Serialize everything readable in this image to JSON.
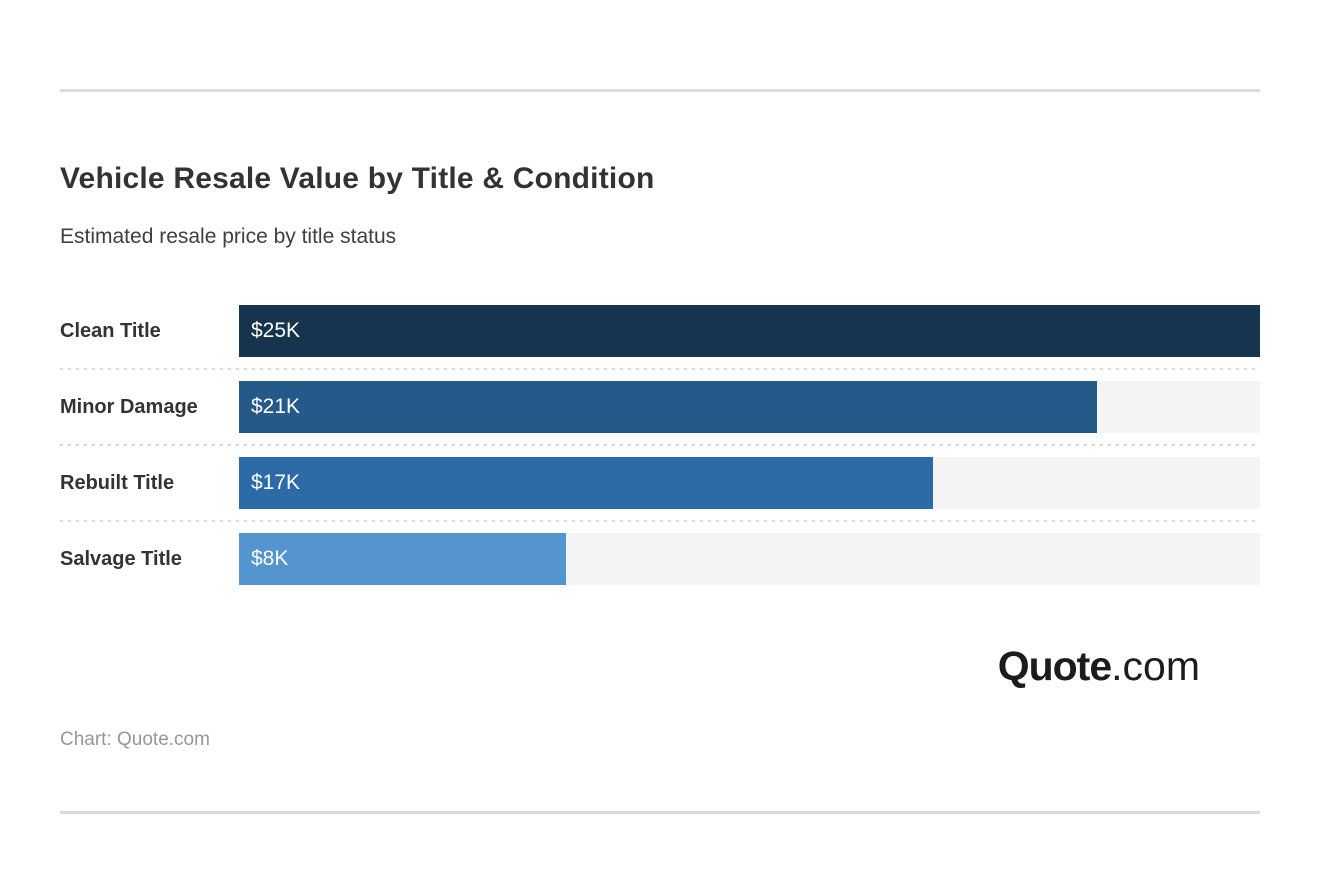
{
  "header": {
    "title": "Vehicle Resale Value by Title & Condition",
    "subtitle": "Estimated resale price by title status"
  },
  "chart_data": {
    "type": "bar",
    "orientation": "horizontal",
    "title": "Vehicle Resale Value by Title & Condition",
    "subtitle": "Estimated resale price by title status",
    "categories": [
      "Clean Title",
      "Minor Damage",
      "Rebuilt Title",
      "Salvage Title"
    ],
    "values": [
      25000,
      21000,
      17000,
      8000
    ],
    "value_labels": [
      "$25K",
      "$21K",
      "$17K",
      "$8K"
    ],
    "unit": "USD",
    "xlim": [
      0,
      25000
    ],
    "bar_colors": [
      "#17344F",
      "#24598A",
      "#2C6BA7",
      "#5494CF"
    ],
    "track_color": "#F4F4F4",
    "grid": false,
    "legend": false
  },
  "footer": {
    "logo": {
      "primary": "Quote",
      "secondary": ".com"
    },
    "attribution": "Chart: Quote.com"
  },
  "colors": {
    "background": "#FFFFFF",
    "divider": "#DBDBDB",
    "row_separator": "#D9D9D9",
    "title_text": "#333333",
    "subtitle_text": "#3F3F3F",
    "category_label_text": "#333333",
    "bar_value_text": "#FFFFFF",
    "attribution_text": "#979797",
    "logo_text": "#1C1C1C"
  }
}
